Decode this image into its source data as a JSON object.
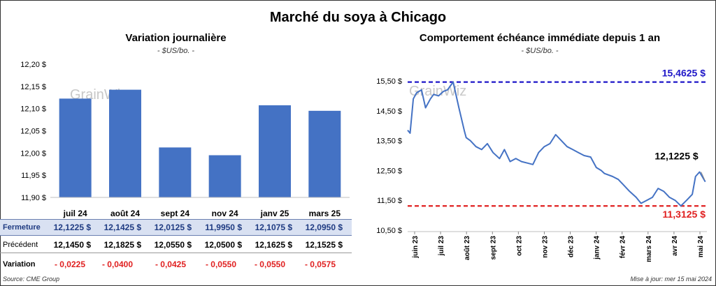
{
  "title": "Marché du soya à Chicago",
  "left_chart": {
    "title": "Variation journalière",
    "unit": "- $US/bo. -",
    "watermark": "GrainWiz",
    "source": "Source: CME Group"
  },
  "right_chart": {
    "title": "Comportement échéance immédiate depuis 1 an",
    "unit": "- $US/bo. -",
    "watermark": "GrainWiz",
    "upper_label": "15,4625 $",
    "lower_label": "11,3125 $",
    "last_label": "12,1225 $",
    "updated": "Mise à jour: mer 15 mai 2024"
  },
  "table": {
    "close_label": "Fermeture",
    "prev_label": "Précédent",
    "var_label": "Variation",
    "close": [
      "12,1225 $",
      "12,1425 $",
      "12,0125 $",
      "11,9950 $",
      "12,1075 $",
      "12,0950 $"
    ],
    "prev": [
      "12,1450 $",
      "12,1825 $",
      "12,0550 $",
      "12,0500 $",
      "12,1625 $",
      "12,1525 $"
    ],
    "var": [
      "- 0,0225",
      "- 0,0400",
      "- 0,0425",
      "- 0,0550",
      "- 0,0550",
      "- 0,0575"
    ]
  },
  "chart_data": [
    {
      "type": "bar",
      "title": "Variation journalière",
      "ylabel": "$US/bo.",
      "categories": [
        "juil 24",
        "août 24",
        "sept 24",
        "nov 24",
        "janv 25",
        "mars 25"
      ],
      "values": [
        12.1225,
        12.1425,
        12.0125,
        11.995,
        12.1075,
        12.095
      ],
      "ylim": [
        11.9,
        12.2
      ],
      "yticks": [
        "11,90 $",
        "11,95 $",
        "12,00 $",
        "12,05 $",
        "12,10 $",
        "12,15 $",
        "12,20 $"
      ],
      "color": "#4472c4",
      "grid": false
    },
    {
      "type": "line",
      "title": "Comportement échéance immédiate depuis 1 an",
      "ylabel": "$US/bo.",
      "ylim": [
        10.5,
        15.5
      ],
      "yticks": [
        "10,50 $",
        "11,50 $",
        "12,50 $",
        "13,50 $",
        "14,50 $",
        "15,50 $"
      ],
      "x_ticks": [
        "juin 23",
        "juil 23",
        "août 23",
        "sept 23",
        "oct 23",
        "nov 23",
        "déc 23",
        "janv 24",
        "févr 24",
        "mars 24",
        "avr 24",
        "mai 24"
      ],
      "x": [
        "2023-05-15",
        "2023-05-18",
        "2023-05-22",
        "2023-05-26",
        "2023-06-01",
        "2023-06-06",
        "2023-06-12",
        "2023-06-16",
        "2023-06-22",
        "2023-06-28",
        "2023-07-03",
        "2023-07-10",
        "2023-07-17",
        "2023-07-24",
        "2023-07-26",
        "2023-07-31",
        "2023-08-07",
        "2023-08-14",
        "2023-08-21",
        "2023-08-28",
        "2023-09-05",
        "2023-09-11",
        "2023-09-18",
        "2023-09-25",
        "2023-10-02",
        "2023-10-09",
        "2023-10-16",
        "2023-10-23",
        "2023-10-30",
        "2023-11-06",
        "2023-11-13",
        "2023-11-20",
        "2023-11-27",
        "2023-12-04",
        "2023-12-11",
        "2023-12-18",
        "2023-12-26",
        "2024-01-02",
        "2024-01-08",
        "2024-01-12",
        "2024-01-22",
        "2024-01-29",
        "2024-02-05",
        "2024-02-12",
        "2024-02-20",
        "2024-02-26",
        "2024-03-04",
        "2024-03-11",
        "2024-03-18",
        "2024-03-25",
        "2024-04-01",
        "2024-04-08",
        "2024-04-15",
        "2024-04-22",
        "2024-04-29",
        "2024-05-03",
        "2024-05-08",
        "2024-05-15"
      ],
      "series": [
        {
          "color": "#4472c4",
          "values": [
            13.85,
            13.75,
            14.9,
            15.1,
            15.2,
            14.6,
            14.9,
            15.05,
            15.0,
            15.15,
            15.2,
            15.4625,
            14.6,
            13.8,
            13.6,
            13.5,
            13.3,
            13.2,
            13.4,
            13.1,
            12.9,
            13.2,
            12.8,
            12.9,
            12.8,
            12.75,
            12.7,
            13.1,
            13.3,
            13.4,
            13.7,
            13.5,
            13.3,
            13.2,
            13.1,
            13.0,
            12.95,
            12.6,
            12.5,
            12.4,
            12.3,
            12.2,
            12.0,
            11.8,
            11.6,
            11.4,
            11.5,
            11.6,
            11.9,
            11.8,
            11.6,
            11.5,
            11.3125,
            11.5,
            11.7,
            12.3,
            12.45,
            12.1225
          ]
        }
      ],
      "reference_lines": [
        {
          "value": 15.4625,
          "label": "15,4625 $",
          "color": "#1f17c8"
        },
        {
          "value": 11.3125,
          "label": "11,3125 $",
          "color": "#e02020"
        }
      ],
      "annotation": {
        "x": "2024-05-15",
        "value": 12.1225,
        "label": "12,1225 $"
      },
      "grid": false
    }
  ]
}
